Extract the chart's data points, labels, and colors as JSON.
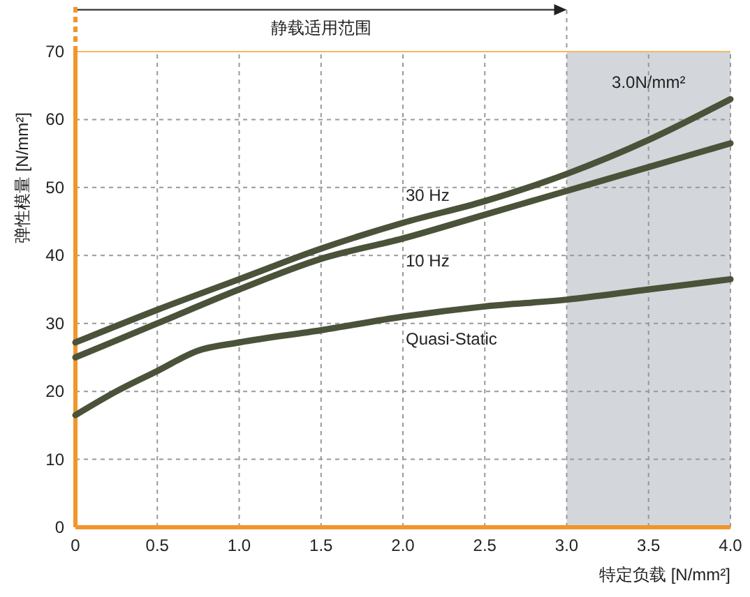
{
  "chart_data": {
    "type": "line",
    "xlabel": "特定负载 [N/mm²]",
    "ylabel": "弹性模量 [N/mm²]",
    "xlim": [
      0,
      4
    ],
    "ylim": [
      0,
      70
    ],
    "xticks": [
      {
        "value": 0,
        "label": "0"
      },
      {
        "value": 0.5,
        "label": "0.5"
      },
      {
        "value": 1,
        "label": "1.0"
      },
      {
        "value": 1.5,
        "label": "1.5"
      },
      {
        "value": 2,
        "label": "2.0"
      },
      {
        "value": 2.5,
        "label": "2.5"
      },
      {
        "value": 3,
        "label": "3.0"
      },
      {
        "value": 3.5,
        "label": "3.5"
      },
      {
        "value": 4,
        "label": "4.0"
      }
    ],
    "yticks": [
      0,
      10,
      20,
      30,
      40,
      50,
      60,
      70
    ],
    "grid": true,
    "marker": "none",
    "line_style": "solid",
    "bands": [
      {
        "axis": "x",
        "from": 3,
        "to": 4,
        "label": "3.0N/mm²",
        "color": "#d3d6da"
      }
    ],
    "annotations": [
      "静载适用范围"
    ],
    "series": [
      {
        "name": "30 Hz",
        "color": "#4a5239",
        "x": [
          0,
          0.5,
          1,
          1.5,
          2,
          2.5,
          3,
          3.5,
          4
        ],
        "values": [
          27.2,
          32,
          36.5,
          41,
          44.8,
          48,
          52,
          57,
          63
        ]
      },
      {
        "name": "10 Hz",
        "color": "#4a5239",
        "x": [
          0,
          0.5,
          1,
          1.5,
          2,
          2.5,
          3,
          3.5,
          4
        ],
        "values": [
          25,
          30,
          35,
          39.5,
          42.5,
          46,
          49.5,
          53,
          56.5
        ]
      },
      {
        "name": "Quasi-Static",
        "color": "#4a5239",
        "x": [
          0,
          0.25,
          0.5,
          0.75,
          1,
          1.5,
          2,
          2.5,
          3,
          3.5,
          4
        ],
        "values": [
          16.5,
          20,
          23,
          26,
          27.2,
          29,
          31,
          32.5,
          33.5,
          35,
          36.5
        ]
      }
    ]
  }
}
